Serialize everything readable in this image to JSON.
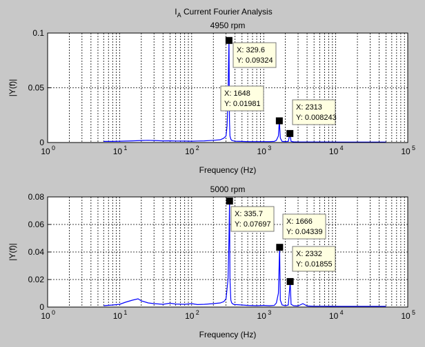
{
  "figure": {
    "title_main": "I",
    "title_sub": "A",
    "title_rest": " Current Fourier Analysis"
  },
  "chart_data": [
    {
      "type": "line",
      "title": "4950 rpm",
      "xlabel": "Frequency (Hz)",
      "ylabel": "|Y(f)|",
      "xscale": "log",
      "xlim": [
        1,
        100000
      ],
      "ylim": [
        0,
        0.1
      ],
      "xtick_exponents": [
        "0",
        "1",
        "2",
        "3",
        "4",
        "5"
      ],
      "yticks": [
        "0",
        "0.05",
        "0.1"
      ],
      "ytick_values": [
        0,
        0.05,
        0.1
      ],
      "grid": true,
      "line_color": "#0000ff",
      "series": [
        {
          "x": [
            6,
            8,
            10,
            12,
            15,
            20,
            25,
            30,
            40,
            50,
            60,
            80,
            100,
            120,
            150,
            200,
            250,
            280,
            300,
            310,
            320,
            325,
            329.6,
            335,
            340,
            350,
            360,
            380,
            400,
            500,
            600,
            800,
            1000,
            1200,
            1400,
            1500,
            1600,
            1648,
            1700,
            1800,
            2000,
            2200,
            2313,
            2400,
            2600,
            3000,
            4000,
            5000,
            7000,
            10000,
            20000,
            50000
          ],
          "y": [
            0.001,
            0.001,
            0.0012,
            0.0013,
            0.0015,
            0.0018,
            0.002,
            0.0018,
            0.0015,
            0.0016,
            0.0014,
            0.0013,
            0.0012,
            0.0014,
            0.0015,
            0.002,
            0.0025,
            0.004,
            0.006,
            0.015,
            0.04,
            0.07,
            0.09324,
            0.02,
            0.006,
            0.003,
            0.002,
            0.0015,
            0.0012,
            0.001,
            0.0008,
            0.0008,
            0.0008,
            0.0008,
            0.001,
            0.002,
            0.006,
            0.01981,
            0.004,
            0.001,
            0.0008,
            0.001,
            0.008243,
            0.001,
            0.0006,
            0.0005,
            0.0005,
            0.0005,
            0.0005,
            0.0004,
            0.0004,
            0.0004
          ]
        }
      ],
      "datatips": [
        {
          "x": 329.6,
          "y": 0.09324,
          "label_x": "X: 329.6",
          "label_y": "Y: 0.09324"
        },
        {
          "x": 1648,
          "y": 0.01981,
          "label_x": "X: 1648",
          "label_y": "Y: 0.01981"
        },
        {
          "x": 2313,
          "y": 0.008243,
          "label_x": "X: 2313",
          "label_y": "Y: 0.008243"
        }
      ]
    },
    {
      "type": "line",
      "title": "5000 rpm",
      "xlabel": "Frequency (Hz)",
      "ylabel": "|Y(f)|",
      "xscale": "log",
      "xlim": [
        1,
        100000
      ],
      "ylim": [
        0,
        0.08
      ],
      "xtick_exponents": [
        "0",
        "1",
        "2",
        "3",
        "4",
        "5"
      ],
      "yticks": [
        "0",
        "0.02",
        "0.04",
        "0.06",
        "0.08"
      ],
      "ytick_values": [
        0,
        0.02,
        0.04,
        0.06,
        0.08
      ],
      "grid": true,
      "line_color": "#0000ff",
      "series": [
        {
          "x": [
            6,
            8,
            10,
            12,
            15,
            18,
            20,
            25,
            30,
            40,
            50,
            60,
            80,
            100,
            120,
            150,
            200,
            250,
            280,
            300,
            320,
            330,
            335.7,
            340,
            350,
            360,
            380,
            400,
            500,
            600,
            800,
            1000,
            1200,
            1400,
            1500,
            1600,
            1666,
            1700,
            1800,
            2000,
            2200,
            2332,
            2400,
            2600,
            3000,
            3500,
            4000,
            5000,
            7000,
            10000,
            20000,
            50000
          ],
          "y": [
            0.001,
            0.0015,
            0.002,
            0.0035,
            0.005,
            0.006,
            0.0045,
            0.003,
            0.0025,
            0.002,
            0.0028,
            0.0022,
            0.002,
            0.0025,
            0.0018,
            0.002,
            0.0025,
            0.003,
            0.004,
            0.006,
            0.02,
            0.05,
            0.07697,
            0.02,
            0.005,
            0.003,
            0.002,
            0.0018,
            0.0015,
            0.0012,
            0.001,
            0.0012,
            0.001,
            0.0012,
            0.003,
            0.01,
            0.04339,
            0.005,
            0.0015,
            0.001,
            0.0015,
            0.01855,
            0.002,
            0.001,
            0.0008,
            0.0025,
            0.0008,
            0.0006,
            0.0006,
            0.0005,
            0.0005,
            0.0005
          ]
        }
      ],
      "datatips": [
        {
          "x": 335.7,
          "y": 0.07697,
          "label_x": "X: 335.7",
          "label_y": "Y: 0.07697"
        },
        {
          "x": 1666,
          "y": 0.04339,
          "label_x": "X: 1666",
          "label_y": "Y: 0.04339"
        },
        {
          "x": 2332,
          "y": 0.01855,
          "label_x": "X: 2332",
          "label_y": "Y: 0.01855"
        }
      ]
    }
  ]
}
